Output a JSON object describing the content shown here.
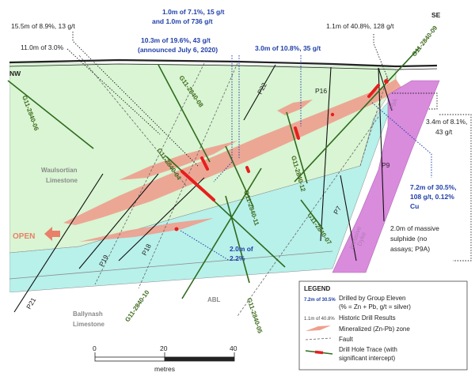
{
  "orientation": {
    "left": "NW",
    "right": "SE"
  },
  "intercepts": {
    "hist_left": "15.5m of 8.9%, 13 g/t",
    "hist_left2": "11.0m of 3.0%",
    "blue_top_1": "1.0m of 7.1%, 15 g/t",
    "blue_top_2": "and 1.0m of 736 g/t",
    "blue_top_3": "10.3m of 19.6%, 43 g/t",
    "blue_top_4": "(announced July 6, 2020)",
    "blue_mid": "3.0m of 10.8%, 35 g/t",
    "hist_right": "1.1m of 40.8%, 128 g/t",
    "hist_right2_1": "3.4m of 8.1%,",
    "hist_right2_2": "43 g/t",
    "blue_right_1": "7.2m of 30.5%,",
    "blue_right_2": "108 g/t, 0.12%",
    "blue_right_3": "Cu",
    "blue_low_1": "2.0m of",
    "blue_low_2": "2.2%",
    "massive_1": "2.0m of massive",
    "massive_2": "sulphide (no",
    "massive_3": "assays; P9A)"
  },
  "drillholes": {
    "h06": "G11-2840-06",
    "h08": "G11-2840-08",
    "h04": "G11-2840-04",
    "h11": "G11-2840-11",
    "h12": "G11-2840-12",
    "h07": "G11-2840-07",
    "h09": "G11-2840-09",
    "h10": "G11-2840-10",
    "h05": "G11-2840-05"
  },
  "historic_holes": {
    "p22": "P22",
    "p16": "P16",
    "p9a": "P9A",
    "p9": "P9",
    "p7": "P7",
    "p19": "P19",
    "p18": "P18",
    "p21": "P21"
  },
  "units": {
    "waulsortian_1": "Waulsortian",
    "waulsortian_2": "Limestone",
    "ballynash_1": "Ballynash",
    "ballynash_2": "Limestone",
    "abl": "ABL",
    "dyke_1": "Intrusive",
    "dyke_2": "Dyke",
    "open": "OPEN"
  },
  "scale": {
    "t0": "0",
    "t20": "20",
    "t40": "40",
    "unit": "metres"
  },
  "legend": {
    "title": "LEGEND",
    "blue_sample": "7.2m of 30.5%",
    "blue_desc_1": "Drilled by Group Eleven",
    "blue_desc_2": "(% = Zn + Pb, g/t = silver)",
    "black_sample": "1.1m of 40.8%",
    "black_desc": "Historic Drill Results",
    "mineral_desc": "Mineralized (Zn-Pb) zone",
    "fault_desc": "Fault",
    "trace_desc_1": "Drill Hole Trace (with",
    "trace_desc_2": "significant intercept)"
  },
  "colors": {
    "waulsortian": "#d9f5d3",
    "ballynash": "#b8f0ea",
    "mineralized": "#eea08e",
    "dyke": "#d98bdc",
    "drill_trace": "#2f6b1e",
    "intercept": "#e61e1e",
    "blue_text": "#1f3fa8"
  }
}
